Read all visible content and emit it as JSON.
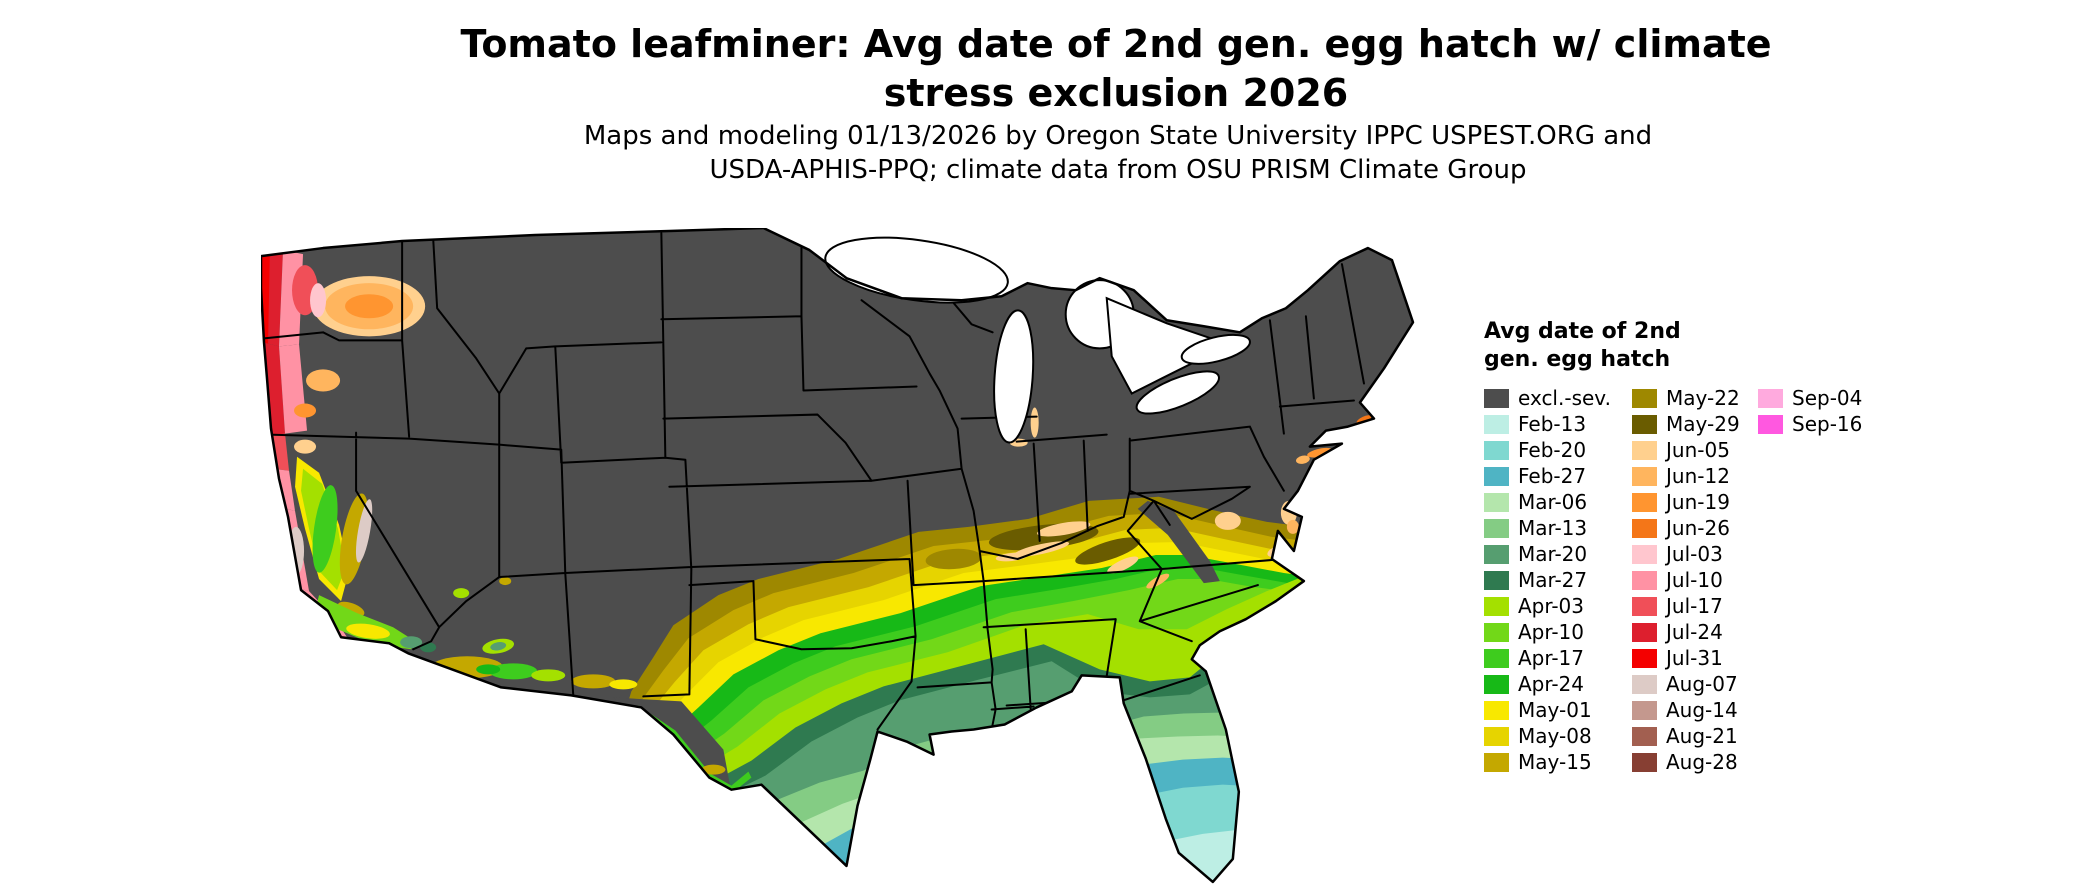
{
  "header": {
    "title": "Tomato leafminer: Avg date of 2nd gen. egg hatch w/ climate\nstress exclusion 2026",
    "subtitle": "Maps and modeling 01/13/2026 by Oregon State University IPPC USPEST.ORG and\nUSDA-APHIS-PPQ; climate data from OSU PRISM Climate Group"
  },
  "legend": {
    "title": "Avg date of 2nd\ngen. egg hatch",
    "columns": [
      [
        {
          "label": "excl.-sev.",
          "color": "#4d4d4d"
        },
        {
          "label": "Feb-13",
          "color": "#bdeee4"
        },
        {
          "label": "Feb-20",
          "color": "#7fd8d0"
        },
        {
          "label": "Feb-27",
          "color": "#4fb4c4"
        },
        {
          "label": "Mar-06",
          "color": "#b4e6ac"
        },
        {
          "label": "Mar-13",
          "color": "#84cc84"
        },
        {
          "label": "Mar-20",
          "color": "#569e70"
        },
        {
          "label": "Mar-27",
          "color": "#2f7a50"
        },
        {
          "label": "Apr-03",
          "color": "#a4e000"
        },
        {
          "label": "Apr-10",
          "color": "#72d818"
        },
        {
          "label": "Apr-17",
          "color": "#3ecc1e"
        },
        {
          "label": "Apr-24",
          "color": "#17b917"
        },
        {
          "label": "May-01",
          "color": "#f8e800"
        },
        {
          "label": "May-08",
          "color": "#e6d400"
        },
        {
          "label": "May-15",
          "color": "#c4a800"
        }
      ],
      [
        {
          "label": "May-22",
          "color": "#9e8800"
        },
        {
          "label": "May-29",
          "color": "#6a5c00"
        },
        {
          "label": "Jun-05",
          "color": "#ffd08e"
        },
        {
          "label": "Jun-12",
          "color": "#ffb55e"
        },
        {
          "label": "Jun-19",
          "color": "#ff9530"
        },
        {
          "label": "Jun-26",
          "color": "#f47618"
        },
        {
          "label": "Jul-03",
          "color": "#ffc6ce"
        },
        {
          "label": "Jul-10",
          "color": "#ff92a4"
        },
        {
          "label": "Jul-17",
          "color": "#f04f58"
        },
        {
          "label": "Jul-24",
          "color": "#dd1f2e"
        },
        {
          "label": "Jul-31",
          "color": "#f40000"
        },
        {
          "label": "Aug-07",
          "color": "#ddcbc6"
        },
        {
          "label": "Aug-14",
          "color": "#c4988e"
        },
        {
          "label": "Aug-21",
          "color": "#a25f50"
        },
        {
          "label": "Aug-28",
          "color": "#873f33"
        }
      ],
      [
        {
          "label": "Sep-04",
          "color": "#ffaade"
        },
        {
          "label": "Sep-16",
          "color": "#ff58e0"
        }
      ]
    ]
  }
}
